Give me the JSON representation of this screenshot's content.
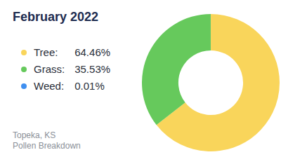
{
  "chart_data": {
    "type": "doughnut",
    "title": "February 2022",
    "annotations": [
      "Topeka, KS",
      "Pollen Breakdown"
    ],
    "categories": [
      "Tree:",
      "Grass:",
      "Weed:"
    ],
    "values": [
      64.46,
      35.53,
      0.01
    ],
    "value_labels": [
      "64.46%",
      "35.53%",
      "0.01%"
    ],
    "colors": [
      "#f9d55b",
      "#66c95c",
      "#3f8ff0"
    ],
    "legend": "left"
  }
}
